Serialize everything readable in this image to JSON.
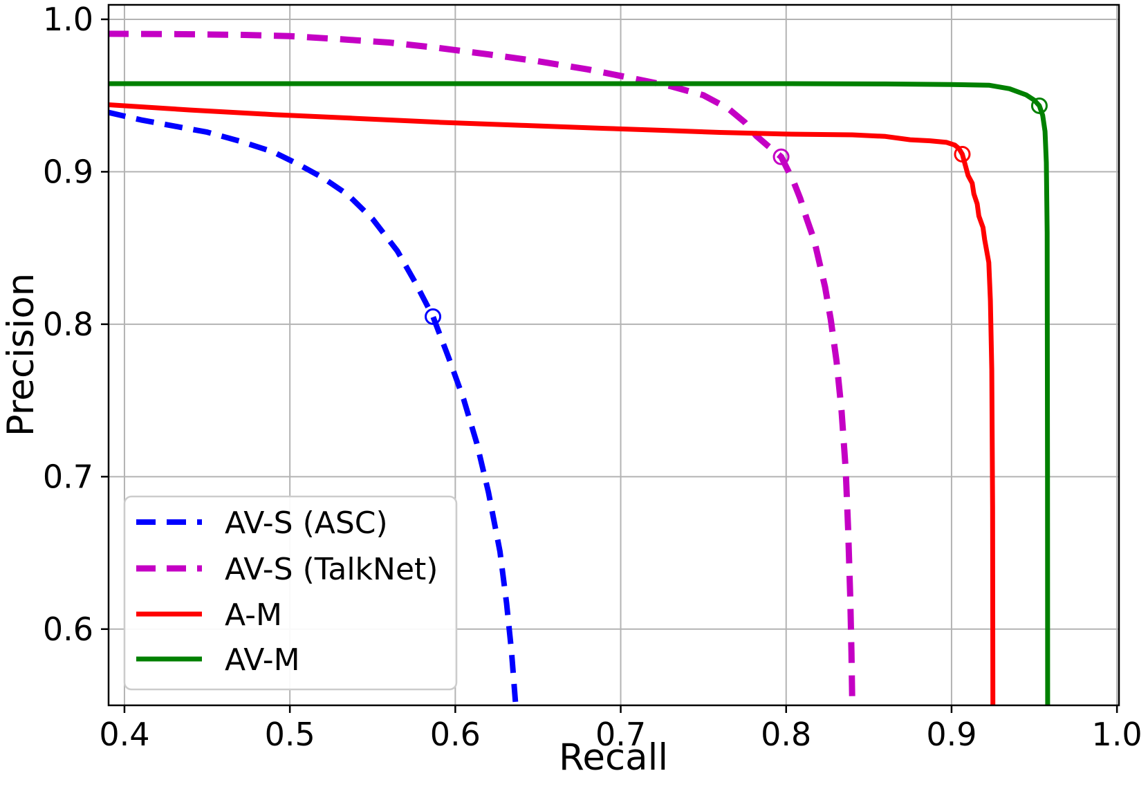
{
  "chart_data": {
    "type": "line",
    "title": "",
    "xlabel": "Recall",
    "ylabel": "Precision",
    "xlim": [
      0.3904,
      1.0012
    ],
    "ylim": [
      0.55,
      1.0095
    ],
    "xticks": [
      0.4,
      0.5,
      0.6,
      0.7,
      0.8,
      0.9,
      1.0
    ],
    "yticks": [
      0.6,
      0.7,
      0.8,
      0.9,
      1.0
    ],
    "grid": true,
    "grid_color": "#b3b3b3",
    "axis_color": "#000000",
    "background_color": "#ffffff",
    "legend_position": "lower left",
    "series": [
      {
        "name": "AV-S (ASC)",
        "color": "#0000ff",
        "style": "dashed",
        "width": 8,
        "dash": "26 16",
        "marker": [
          0.5865,
          0.805
        ],
        "points": [
          [
            0.39,
            0.939
          ],
          [
            0.41,
            0.934
          ],
          [
            0.43,
            0.93
          ],
          [
            0.45,
            0.926
          ],
          [
            0.47,
            0.92
          ],
          [
            0.49,
            0.913
          ],
          [
            0.505,
            0.905
          ],
          [
            0.52,
            0.896
          ],
          [
            0.535,
            0.885
          ],
          [
            0.55,
            0.869
          ],
          [
            0.565,
            0.848
          ],
          [
            0.576,
            0.827
          ],
          [
            0.5865,
            0.805
          ],
          [
            0.596,
            0.778
          ],
          [
            0.605,
            0.751
          ],
          [
            0.613,
            0.722
          ],
          [
            0.62,
            0.69
          ],
          [
            0.627,
            0.651
          ],
          [
            0.631,
            0.617
          ],
          [
            0.634,
            0.585
          ],
          [
            0.6365,
            0.55
          ]
        ]
      },
      {
        "name": "AV-S (TalkNet)",
        "color": "#c400c4",
        "style": "dashed",
        "width": 9,
        "dash": "30 18",
        "marker": [
          0.797,
          0.9098
        ],
        "points": [
          [
            0.39,
            0.9905
          ],
          [
            0.43,
            0.9903
          ],
          [
            0.47,
            0.9898
          ],
          [
            0.5,
            0.989
          ],
          [
            0.53,
            0.987
          ],
          [
            0.56,
            0.9848
          ],
          [
            0.59,
            0.9812
          ],
          [
            0.62,
            0.977
          ],
          [
            0.65,
            0.9725
          ],
          [
            0.68,
            0.9672
          ],
          [
            0.705,
            0.9618
          ],
          [
            0.73,
            0.9562
          ],
          [
            0.75,
            0.9502
          ],
          [
            0.765,
            0.9415
          ],
          [
            0.775,
            0.9325
          ],
          [
            0.782,
            0.9235
          ],
          [
            0.789,
            0.917
          ],
          [
            0.797,
            0.9098
          ],
          [
            0.8045,
            0.8935
          ],
          [
            0.8085,
            0.8825
          ],
          [
            0.8125,
            0.869
          ],
          [
            0.817,
            0.855
          ],
          [
            0.8235,
            0.8245
          ],
          [
            0.827,
            0.803
          ],
          [
            0.8305,
            0.7755
          ],
          [
            0.8335,
            0.743
          ],
          [
            0.836,
            0.7045
          ],
          [
            0.8375,
            0.6655
          ],
          [
            0.8388,
            0.62
          ],
          [
            0.8395,
            0.585
          ],
          [
            0.84,
            0.55
          ]
        ]
      },
      {
        "name": "A-M",
        "color": "#ff0000",
        "style": "solid",
        "width": 7,
        "dash": "",
        "marker": [
          0.9065,
          0.9115
        ],
        "points": [
          [
            0.39,
            0.944
          ],
          [
            0.44,
            0.9405
          ],
          [
            0.49,
            0.9375
          ],
          [
            0.54,
            0.935
          ],
          [
            0.59,
            0.9325
          ],
          [
            0.64,
            0.9305
          ],
          [
            0.69,
            0.9285
          ],
          [
            0.73,
            0.927
          ],
          [
            0.76,
            0.9258
          ],
          [
            0.8,
            0.9247
          ],
          [
            0.84,
            0.9242
          ],
          [
            0.86,
            0.9232
          ],
          [
            0.875,
            0.921
          ],
          [
            0.887,
            0.9203
          ],
          [
            0.897,
            0.9193
          ],
          [
            0.902,
            0.9175
          ],
          [
            0.9045,
            0.9152
          ],
          [
            0.9065,
            0.9115
          ],
          [
            0.9085,
            0.9035
          ],
          [
            0.91,
            0.8975
          ],
          [
            0.9125,
            0.8925
          ],
          [
            0.9135,
            0.8855
          ],
          [
            0.9155,
            0.879
          ],
          [
            0.9165,
            0.871
          ],
          [
            0.919,
            0.8635
          ],
          [
            0.92,
            0.8555
          ],
          [
            0.9225,
            0.8405
          ],
          [
            0.9235,
            0.8155
          ],
          [
            0.9243,
            0.77
          ],
          [
            0.9248,
            0.68
          ],
          [
            0.925,
            0.55
          ]
        ]
      },
      {
        "name": "AV-M",
        "color": "#008000",
        "style": "solid",
        "width": 7,
        "dash": "",
        "marker": [
          0.9531,
          0.9433
        ],
        "points": [
          [
            0.39,
            0.9578
          ],
          [
            0.5,
            0.9578
          ],
          [
            0.6,
            0.9578
          ],
          [
            0.7,
            0.9578
          ],
          [
            0.8,
            0.9578
          ],
          [
            0.86,
            0.9576
          ],
          [
            0.9,
            0.9572
          ],
          [
            0.9226,
            0.9568
          ],
          [
            0.935,
            0.9545
          ],
          [
            0.945,
            0.9505
          ],
          [
            0.95,
            0.947
          ],
          [
            0.9531,
            0.9433
          ],
          [
            0.9551,
            0.937
          ],
          [
            0.9565,
            0.9265
          ],
          [
            0.9573,
            0.906
          ],
          [
            0.9578,
            0.86
          ],
          [
            0.958,
            0.7
          ],
          [
            0.9581,
            0.55
          ]
        ]
      }
    ]
  }
}
